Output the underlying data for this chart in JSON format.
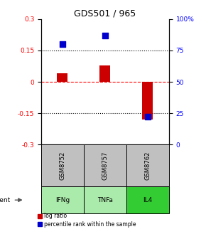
{
  "title": "GDS501 / 965",
  "samples": [
    "GSM8752",
    "GSM8757",
    "GSM8762"
  ],
  "agents": [
    "IFNg",
    "TNFa",
    "IL4"
  ],
  "log_ratios": [
    0.04,
    0.08,
    -0.18
  ],
  "percentile_ranks": [
    80,
    87,
    22
  ],
  "bar_color": "#cc0000",
  "dot_color": "#0000cc",
  "left_ylim": [
    -0.3,
    0.3
  ],
  "right_ylim": [
    0,
    100
  ],
  "left_yticks": [
    -0.3,
    -0.15,
    0,
    0.15,
    0.3
  ],
  "left_yticklabels": [
    "-0.3",
    "-0.15",
    "0",
    "0.15",
    "0.3"
  ],
  "right_yticks": [
    0,
    25,
    50,
    75,
    100
  ],
  "right_yticklabels": [
    "0",
    "25",
    "50",
    "75",
    "100%"
  ],
  "sample_box_color": "#c0c0c0",
  "agent_colors": [
    "#aaeaaa",
    "#aaeaaa",
    "#33cc33"
  ],
  "bar_width": 0.25,
  "x_positions": [
    1,
    2,
    3
  ],
  "dot_size": 30,
  "title_fontsize": 9,
  "tick_fontsize": 6.5,
  "label_fontsize": 6,
  "legend_fontsize": 5.5
}
